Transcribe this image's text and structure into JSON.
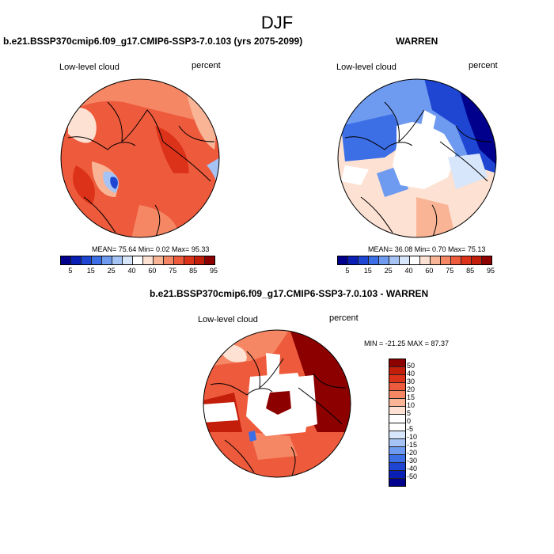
{
  "figure": {
    "season_title": "DJF"
  },
  "panel_model": {
    "title": "b.e21.BSSP370cmip6.f09_g17.CMIP6-SSP3-7.0.103 (yrs 2075-2099)",
    "left_label": "Low-level cloud",
    "right_label": "percent",
    "stats": "MEAN=  75.64  Min=   0.02  Max=  95.33"
  },
  "panel_obs": {
    "title": "WARREN",
    "left_label": "Low-level cloud",
    "right_label": "percent",
    "stats": "MEAN=  36.08  Min=   0.70  Max=  75.13"
  },
  "panel_diff": {
    "title": "b.e21.BSSP370cmip6.f09_g17.CMIP6-SSP3-7.0.103 - WARREN",
    "left_label": "Low-level cloud",
    "right_label": "percent",
    "minmax": "MIN = -21.25 MAX =  87.37"
  },
  "colorbar_abs": {
    "tick_labels": [
      "5",
      "15",
      "25",
      "40",
      "60",
      "75",
      "85",
      "95"
    ],
    "colors": [
      "#00008c",
      "#0a1fb4",
      "#1e46d2",
      "#3c6ee6",
      "#6e9af0",
      "#a5c3f5",
      "#d7e6fa",
      "#ffffff",
      "#fde1d2",
      "#f9b496",
      "#f58764",
      "#ee5a3c",
      "#dc3219",
      "#c31e0a",
      "#8c0000"
    ]
  },
  "colorbar_diff": {
    "tick_labels": [
      "50",
      "40",
      "30",
      "20",
      "15",
      "10",
      "5",
      "0",
      "-5",
      "-10",
      "-15",
      "-20",
      "-30",
      "-40",
      "-50"
    ],
    "colors": [
      "#8c0000",
      "#c31e0a",
      "#dc3219",
      "#ee5a3c",
      "#f58764",
      "#f9b496",
      "#fde1d2",
      "#ffffff",
      "#ffffff",
      "#d7e6fa",
      "#a5c3f5",
      "#6e9af0",
      "#3c6ee6",
      "#1e46d2",
      "#0a1fb4",
      "#00008c"
    ]
  }
}
